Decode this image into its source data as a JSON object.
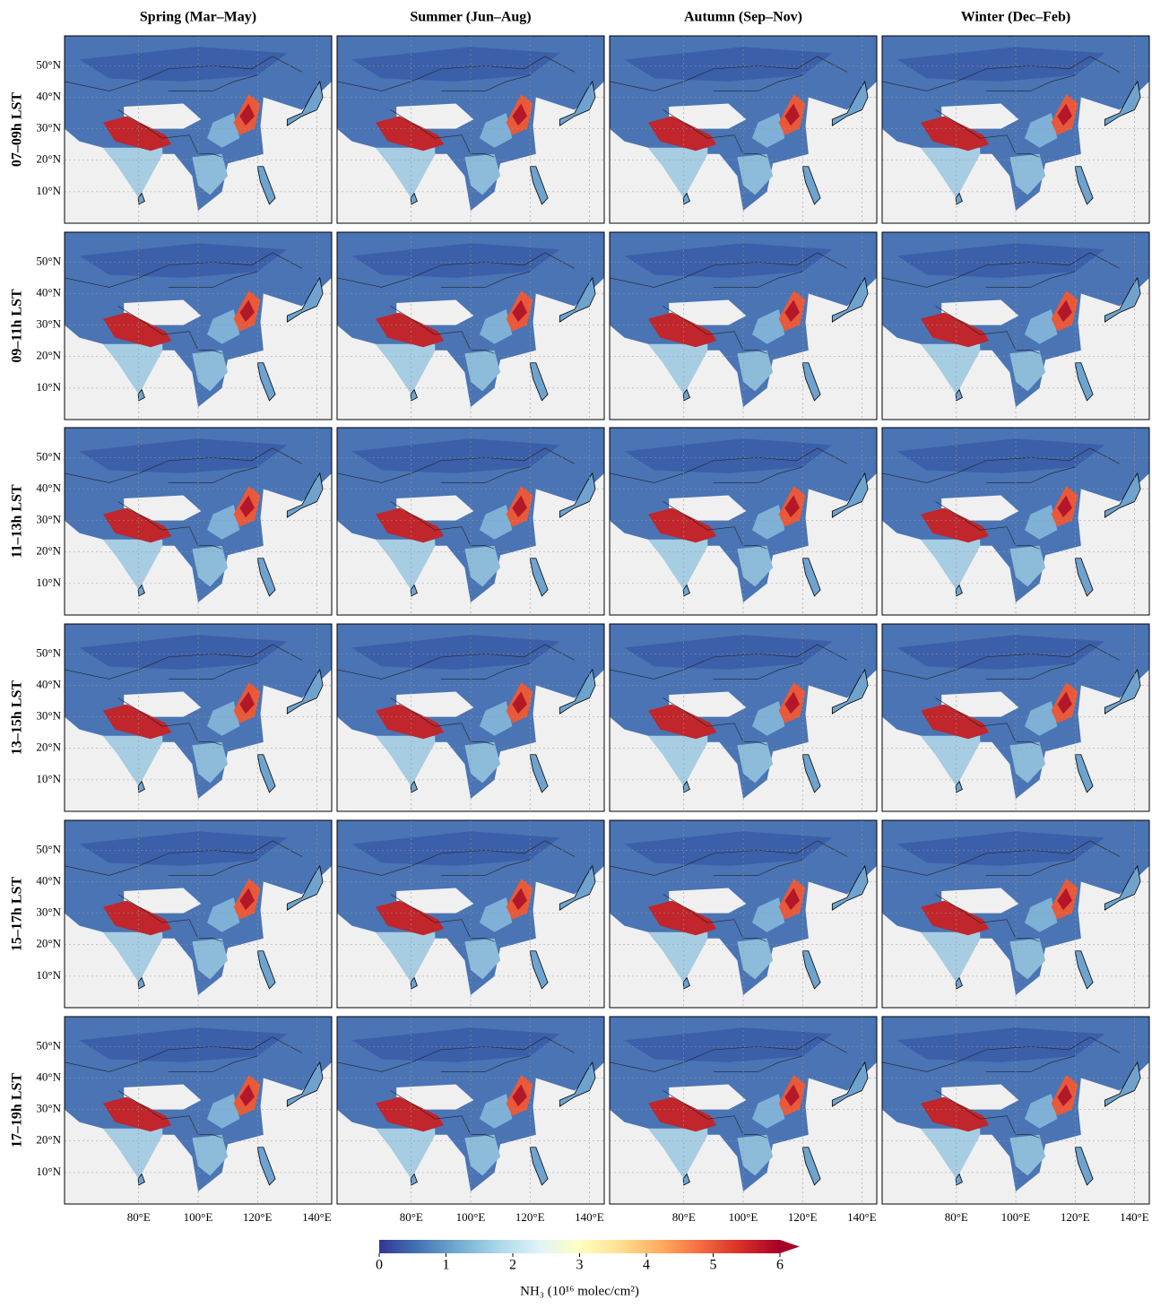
{
  "figure": {
    "columns": [
      "Spring (Mar–May)",
      "Summer (Jun–Aug)",
      "Autumn (Sep–Nov)",
      "Winter (Dec–Feb)"
    ],
    "rows": [
      "07–09h LST",
      "09–11h LST",
      "11–13h LST",
      "13–15h LST",
      "15–17h LST",
      "17–19h LST"
    ],
    "lon_range": [
      55,
      145
    ],
    "lat_range": [
      0,
      59.5
    ],
    "lat_ticks": [
      {
        "value": 10,
        "label": "10°N"
      },
      {
        "value": 20,
        "label": "20°N"
      },
      {
        "value": 30,
        "label": "30°N"
      },
      {
        "value": 40,
        "label": "40°N"
      },
      {
        "value": 50,
        "label": "50°N"
      }
    ],
    "lon_ticks": [
      {
        "value": 80,
        "label": "80°E"
      },
      {
        "value": 100,
        "label": "100°E"
      },
      {
        "value": 120,
        "label": "120°E"
      },
      {
        "value": 140,
        "label": "140°E"
      }
    ],
    "colorbar": {
      "lim": [
        0,
        6
      ],
      "ticks": [
        0,
        1,
        2,
        3,
        4,
        5,
        6
      ],
      "label": "NH₃  (10¹⁶ molec/cm²)",
      "colormap": [
        "#313695",
        "#4575b4",
        "#74add1",
        "#abd9e9",
        "#e0f3f8",
        "#ffffbf",
        "#fee090",
        "#fdae61",
        "#f46d43",
        "#d73027",
        "#a50026"
      ]
    }
  }
}
